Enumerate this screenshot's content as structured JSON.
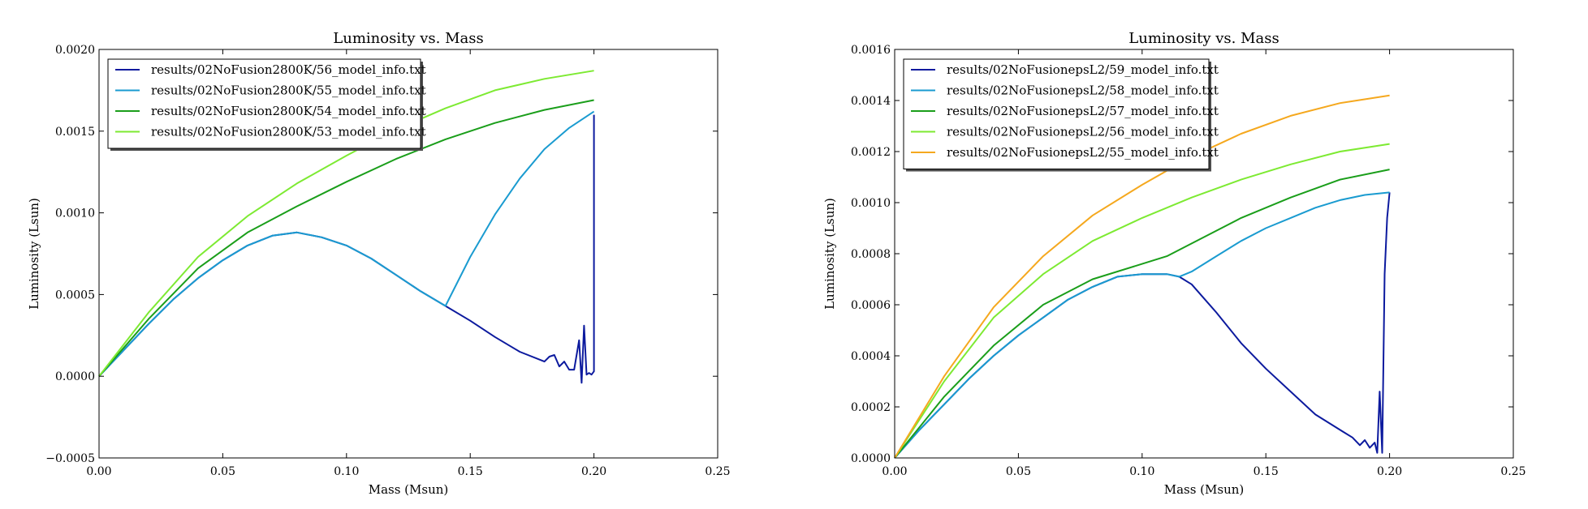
{
  "chart_data": [
    {
      "type": "line",
      "title": "Luminosity vs. Mass",
      "xlabel": "Mass (Msun)",
      "ylabel": "Luminosity (Lsun)",
      "xlim": [
        0.0,
        0.25
      ],
      "ylim": [
        -0.0005,
        0.002
      ],
      "xticks": [
        "0.00",
        "0.05",
        "0.10",
        "0.15",
        "0.20",
        "0.25"
      ],
      "yticks": [
        "−0.0005",
        "0.0000",
        "0.0005",
        "0.0010",
        "0.0015",
        "0.0020"
      ],
      "xtick_values": [
        0.0,
        0.05,
        0.1,
        0.15,
        0.2,
        0.25
      ],
      "ytick_values": [
        -0.0005,
        0.0,
        0.0005,
        0.001,
        0.0015,
        0.002
      ],
      "grid": false,
      "legend_position": "top-left",
      "series": [
        {
          "name": "results/02NoFusion2800K/56_model_info.txt",
          "color": "#0c1a9e",
          "x": [
            0.0,
            0.01,
            0.02,
            0.03,
            0.04,
            0.05,
            0.06,
            0.07,
            0.08,
            0.09,
            0.1,
            0.11,
            0.12,
            0.13,
            0.14,
            0.15,
            0.16,
            0.17,
            0.18,
            0.182,
            0.184,
            0.186,
            0.188,
            0.19,
            0.192,
            0.194,
            0.195,
            0.196,
            0.197,
            0.198,
            0.199,
            0.2,
            0.2,
            0.2
          ],
          "y": [
            0.0,
            0.00016,
            0.00032,
            0.00047,
            0.0006,
            0.00071,
            0.0008,
            0.00086,
            0.00088,
            0.00085,
            0.0008,
            0.00072,
            0.00062,
            0.00052,
            0.00043,
            0.00034,
            0.00024,
            0.00015,
            9e-05,
            0.00012,
            0.00013,
            6e-05,
            9e-05,
            4e-05,
            4e-05,
            0.00022,
            -4e-05,
            0.00031,
            1e-05,
            2e-05,
            1e-05,
            3e-05,
            0.0008,
            0.0016
          ]
        },
        {
          "name": "results/02NoFusion2800K/55_model_info.txt",
          "color": "#1a9bd0",
          "x": [
            0.0,
            0.01,
            0.02,
            0.03,
            0.04,
            0.05,
            0.06,
            0.07,
            0.08,
            0.09,
            0.1,
            0.11,
            0.12,
            0.13,
            0.14,
            0.15,
            0.16,
            0.17,
            0.18,
            0.19,
            0.2
          ],
          "y": [
            0.0,
            0.00016,
            0.00032,
            0.00047,
            0.0006,
            0.00071,
            0.0008,
            0.00086,
            0.00088,
            0.00085,
            0.0008,
            0.00072,
            0.00062,
            0.00052,
            0.00043,
            0.00073,
            0.00099,
            0.00121,
            0.00139,
            0.00152,
            0.00162
          ]
        },
        {
          "name": "results/02NoFusion2800K/54_model_info.txt",
          "color": "#1a9e1a",
          "x": [
            0.0,
            0.02,
            0.04,
            0.06,
            0.08,
            0.1,
            0.12,
            0.14,
            0.16,
            0.18,
            0.2
          ],
          "y": [
            0.0,
            0.00035,
            0.00066,
            0.00088,
            0.00104,
            0.00119,
            0.00133,
            0.00145,
            0.00155,
            0.00163,
            0.00169
          ]
        },
        {
          "name": "results/02NoFusion2800K/53_model_info.txt",
          "color": "#7dea32",
          "x": [
            0.0,
            0.02,
            0.04,
            0.06,
            0.08,
            0.1,
            0.12,
            0.14,
            0.16,
            0.18,
            0.2
          ],
          "y": [
            0.0,
            0.00039,
            0.00073,
            0.00098,
            0.00118,
            0.00135,
            0.00151,
            0.00164,
            0.00175,
            0.00182,
            0.00187
          ]
        }
      ]
    },
    {
      "type": "line",
      "title": "Luminosity vs. Mass",
      "xlabel": "Mass (Msun)",
      "ylabel": "Luminosity (Lsun)",
      "xlim": [
        0.0,
        0.25
      ],
      "ylim": [
        0.0,
        0.0016
      ],
      "xticks": [
        "0.00",
        "0.05",
        "0.10",
        "0.15",
        "0.20",
        "0.25"
      ],
      "yticks": [
        "0.0000",
        "0.0002",
        "0.0004",
        "0.0006",
        "0.0008",
        "0.0010",
        "0.0012",
        "0.0014",
        "0.0016"
      ],
      "xtick_values": [
        0.0,
        0.05,
        0.1,
        0.15,
        0.2,
        0.25
      ],
      "ytick_values": [
        0.0,
        0.0002,
        0.0004,
        0.0006,
        0.0008,
        0.001,
        0.0012,
        0.0014,
        0.0016
      ],
      "grid": false,
      "legend_position": "top-left",
      "series": [
        {
          "name": "results/02NoFusionepsL2/59_model_info.txt",
          "color": "#0c1a9e",
          "x": [
            0.0,
            0.01,
            0.02,
            0.03,
            0.04,
            0.05,
            0.06,
            0.07,
            0.08,
            0.09,
            0.1,
            0.11,
            0.115,
            0.12,
            0.13,
            0.14,
            0.15,
            0.16,
            0.17,
            0.18,
            0.185,
            0.188,
            0.19,
            0.192,
            0.194,
            0.195,
            0.196,
            0.197,
            0.198,
            0.199,
            0.2
          ],
          "y": [
            0.0,
            0.00011,
            0.00021,
            0.00031,
            0.0004,
            0.00048,
            0.00055,
            0.00062,
            0.00067,
            0.00071,
            0.00072,
            0.00072,
            0.00071,
            0.00068,
            0.00057,
            0.00045,
            0.00035,
            0.00026,
            0.00017,
            0.00011,
            8e-05,
            5e-05,
            7e-05,
            4e-05,
            6e-05,
            2e-05,
            0.00026,
            2e-05,
            0.00072,
            0.00094,
            0.00104
          ]
        },
        {
          "name": "results/02NoFusionepsL2/58_model_info.txt",
          "color": "#1a9bd0",
          "x": [
            0.0,
            0.01,
            0.02,
            0.03,
            0.04,
            0.05,
            0.06,
            0.07,
            0.08,
            0.09,
            0.1,
            0.11,
            0.115,
            0.12,
            0.13,
            0.14,
            0.15,
            0.16,
            0.17,
            0.18,
            0.19,
            0.2
          ],
          "y": [
            0.0,
            0.00011,
            0.00021,
            0.00031,
            0.0004,
            0.00048,
            0.00055,
            0.00062,
            0.00067,
            0.00071,
            0.00072,
            0.00072,
            0.00071,
            0.00073,
            0.00079,
            0.00085,
            0.0009,
            0.00094,
            0.00098,
            0.00101,
            0.00103,
            0.00104
          ]
        },
        {
          "name": "results/02NoFusionepsL2/57_model_info.txt",
          "color": "#1a9e1a",
          "x": [
            0.0,
            0.02,
            0.04,
            0.06,
            0.08,
            0.1,
            0.11,
            0.12,
            0.14,
            0.16,
            0.18,
            0.2
          ],
          "y": [
            0.0,
            0.00024,
            0.00044,
            0.0006,
            0.0007,
            0.00076,
            0.00079,
            0.00084,
            0.00094,
            0.00102,
            0.00109,
            0.00113
          ]
        },
        {
          "name": "results/02NoFusionepsL2/56_model_info.txt",
          "color": "#7dea32",
          "x": [
            0.0,
            0.02,
            0.04,
            0.06,
            0.08,
            0.1,
            0.12,
            0.14,
            0.16,
            0.18,
            0.2
          ],
          "y": [
            0.0,
            0.0003,
            0.00055,
            0.00072,
            0.00085,
            0.00094,
            0.00102,
            0.00109,
            0.00115,
            0.0012,
            0.00123
          ]
        },
        {
          "name": "results/02NoFusionepsL2/55_model_info.txt",
          "color": "#f5a81e",
          "x": [
            0.0,
            0.02,
            0.04,
            0.06,
            0.08,
            0.1,
            0.12,
            0.14,
            0.16,
            0.18,
            0.2
          ],
          "y": [
            0.0,
            0.00032,
            0.00059,
            0.00079,
            0.00095,
            0.00107,
            0.00118,
            0.00127,
            0.00134,
            0.00139,
            0.00142
          ]
        }
      ]
    }
  ]
}
